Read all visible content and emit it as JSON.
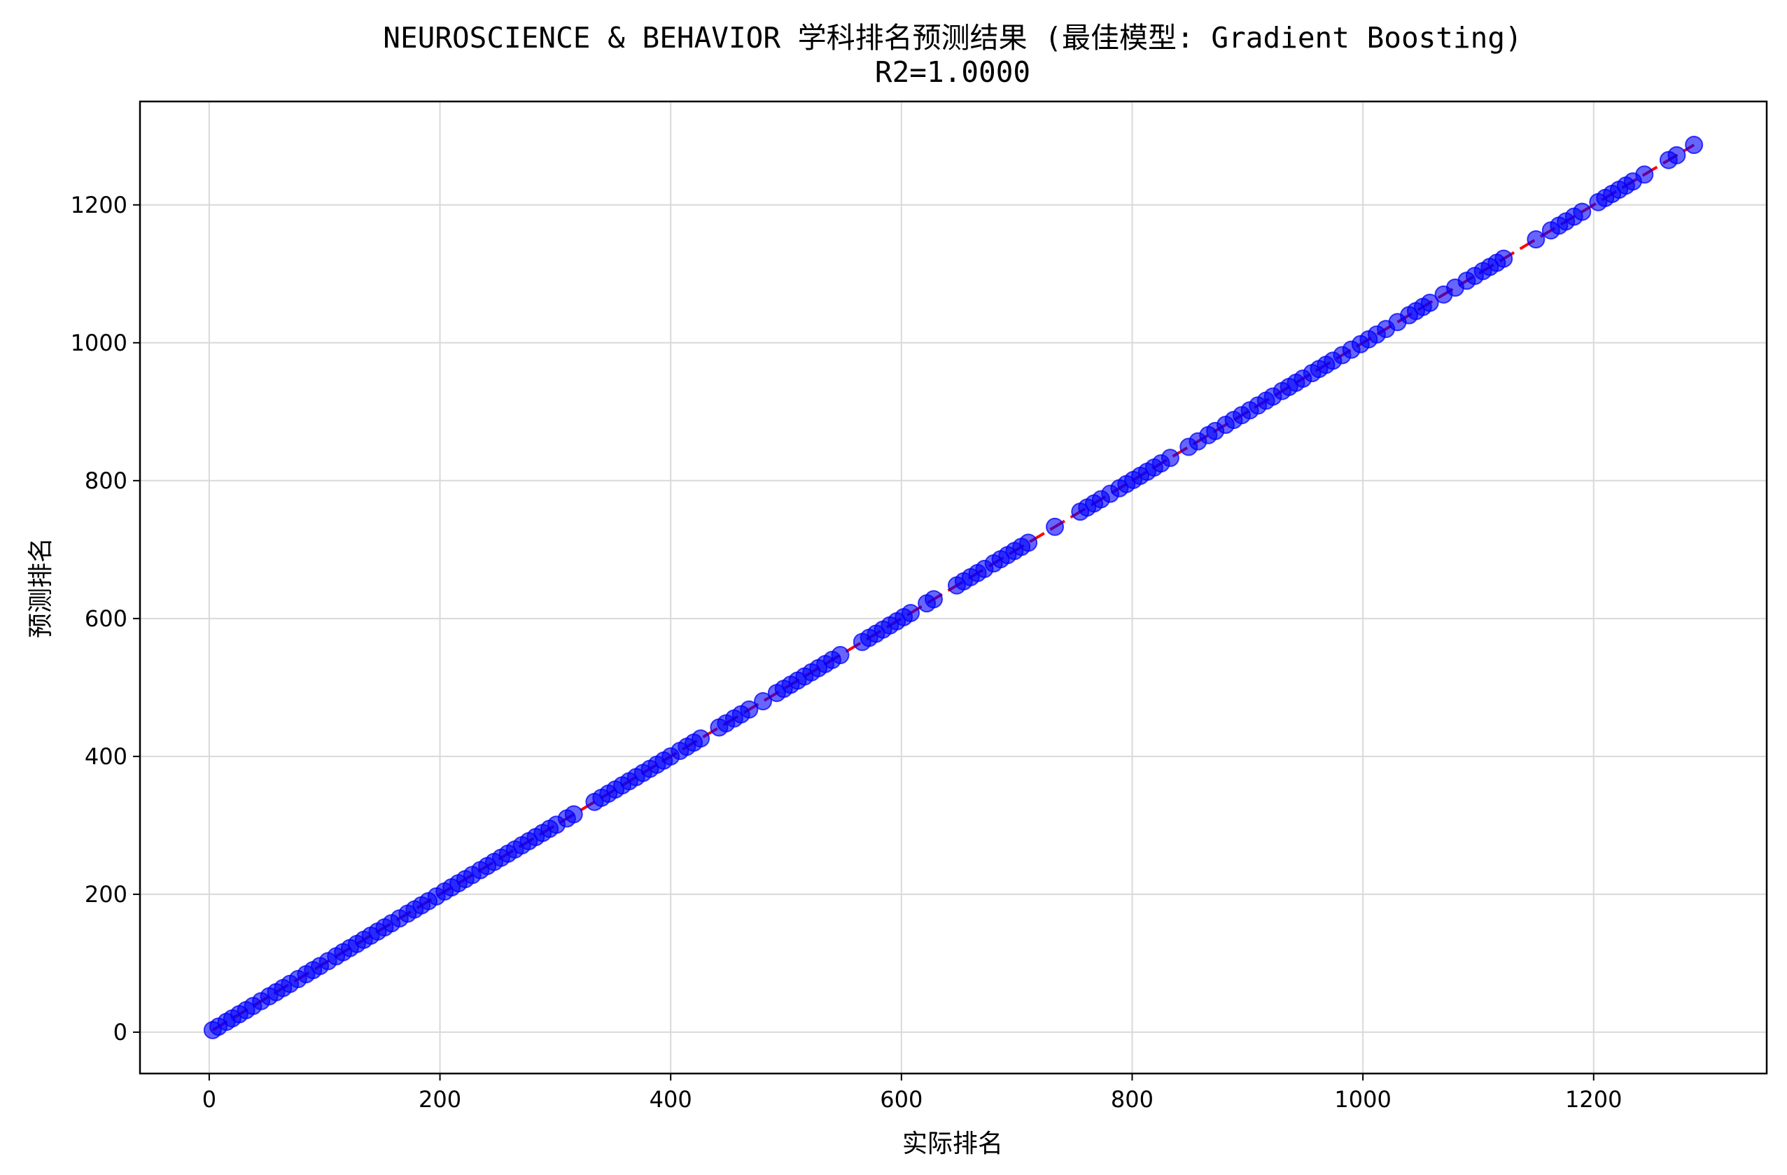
{
  "chart_data": {
    "type": "scatter",
    "title": "NEUROSCIENCE & BEHAVIOR 学科排名预测结果 (最佳模型: Gradient Boosting)",
    "subtitle": "R2=1.0000",
    "xlabel": "实际排名",
    "ylabel": "预测排名",
    "xlim": [
      -60,
      1350
    ],
    "ylim": [
      -60,
      1350
    ],
    "xticks": [
      0,
      200,
      400,
      600,
      800,
      1000,
      1200
    ],
    "yticks": [
      0,
      200,
      400,
      600,
      800,
      1000,
      1200
    ],
    "grid": true,
    "reference_line": {
      "from": [
        3,
        3
      ],
      "to": [
        1287,
        1287
      ],
      "style": "dashed",
      "color": "#ff0000"
    },
    "marker_color": "#0000ff",
    "x": [
      3,
      8,
      15,
      20,
      26,
      32,
      38,
      45,
      52,
      58,
      64,
      70,
      77,
      84,
      90,
      96,
      103,
      110,
      116,
      122,
      128,
      134,
      140,
      146,
      152,
      158,
      165,
      172,
      178,
      184,
      190,
      197,
      204,
      210,
      216,
      222,
      228,
      235,
      241,
      247,
      253,
      259,
      265,
      271,
      277,
      283,
      289,
      295,
      301,
      310,
      316,
      334,
      340,
      346,
      352,
      358,
      364,
      370,
      376,
      382,
      388,
      394,
      400,
      408,
      414,
      420,
      426,
      442,
      448,
      455,
      461,
      468,
      480,
      492,
      498,
      504,
      510,
      516,
      522,
      528,
      534,
      540,
      547,
      566,
      572,
      578,
      584,
      590,
      596,
      602,
      608,
      622,
      628,
      648,
      654,
      660,
      666,
      672,
      680,
      686,
      692,
      698,
      704,
      710,
      733,
      755,
      761,
      767,
      773,
      781,
      789,
      795,
      801,
      807,
      813,
      819,
      825,
      833,
      849,
      857,
      866,
      872,
      881,
      888,
      895,
      902,
      909,
      916,
      922,
      930,
      936,
      942,
      948,
      956,
      962,
      968,
      974,
      982,
      990,
      998,
      1005,
      1012,
      1020,
      1030,
      1040,
      1046,
      1052,
      1058,
      1070,
      1080,
      1090,
      1097,
      1104,
      1110,
      1116,
      1122,
      1150,
      1163,
      1170,
      1176,
      1183,
      1190,
      1204,
      1210,
      1216,
      1222,
      1228,
      1234,
      1244,
      1265,
      1272,
      1287
    ],
    "y": [
      3,
      8,
      15,
      20,
      26,
      32,
      38,
      45,
      52,
      58,
      64,
      70,
      77,
      84,
      90,
      96,
      103,
      110,
      116,
      122,
      128,
      134,
      140,
      146,
      152,
      158,
      165,
      172,
      178,
      184,
      190,
      197,
      204,
      210,
      216,
      222,
      228,
      235,
      241,
      247,
      253,
      259,
      265,
      271,
      277,
      283,
      289,
      295,
      301,
      310,
      316,
      334,
      340,
      346,
      352,
      358,
      364,
      370,
      376,
      382,
      388,
      394,
      400,
      408,
      414,
      420,
      426,
      442,
      448,
      455,
      461,
      468,
      480,
      492,
      498,
      504,
      510,
      516,
      522,
      528,
      534,
      540,
      547,
      566,
      572,
      578,
      584,
      590,
      596,
      602,
      608,
      622,
      628,
      648,
      654,
      660,
      666,
      672,
      680,
      686,
      692,
      698,
      704,
      710,
      733,
      755,
      761,
      767,
      773,
      781,
      789,
      795,
      801,
      807,
      813,
      819,
      825,
      833,
      849,
      857,
      866,
      872,
      881,
      888,
      895,
      902,
      909,
      916,
      922,
      930,
      936,
      942,
      948,
      956,
      962,
      968,
      974,
      982,
      990,
      998,
      1005,
      1012,
      1020,
      1030,
      1040,
      1046,
      1052,
      1058,
      1070,
      1080,
      1090,
      1097,
      1104,
      1110,
      1116,
      1122,
      1150,
      1163,
      1170,
      1176,
      1183,
      1190,
      1204,
      1210,
      1216,
      1222,
      1228,
      1234,
      1244,
      1265,
      1272,
      1287
    ]
  }
}
